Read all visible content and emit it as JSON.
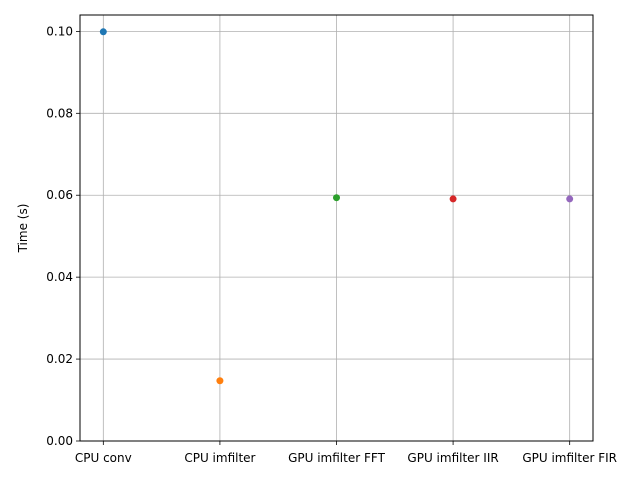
{
  "chart_data": {
    "type": "scatter",
    "categories": [
      "CPU conv",
      "CPU imfilter",
      "GPU imfilter FFT",
      "GPU imfilter IIR",
      "GPU imfilter FIR"
    ],
    "values": [
      0.0999,
      0.0147,
      0.0594,
      0.0591,
      0.0591
    ],
    "colors": [
      "#1f77b4",
      "#ff7f0e",
      "#2ca02c",
      "#d62728",
      "#9467bd"
    ],
    "xlabel": "",
    "ylabel": "Time (s)",
    "ylim": [
      0.0,
      0.104
    ],
    "yticks": [
      0.0,
      0.02,
      0.04,
      0.06,
      0.08,
      0.1
    ],
    "ytick_labels": [
      "0.00",
      "0.02",
      "0.04",
      "0.06",
      "0.08",
      "0.10"
    ],
    "grid": true,
    "legend": "none"
  }
}
